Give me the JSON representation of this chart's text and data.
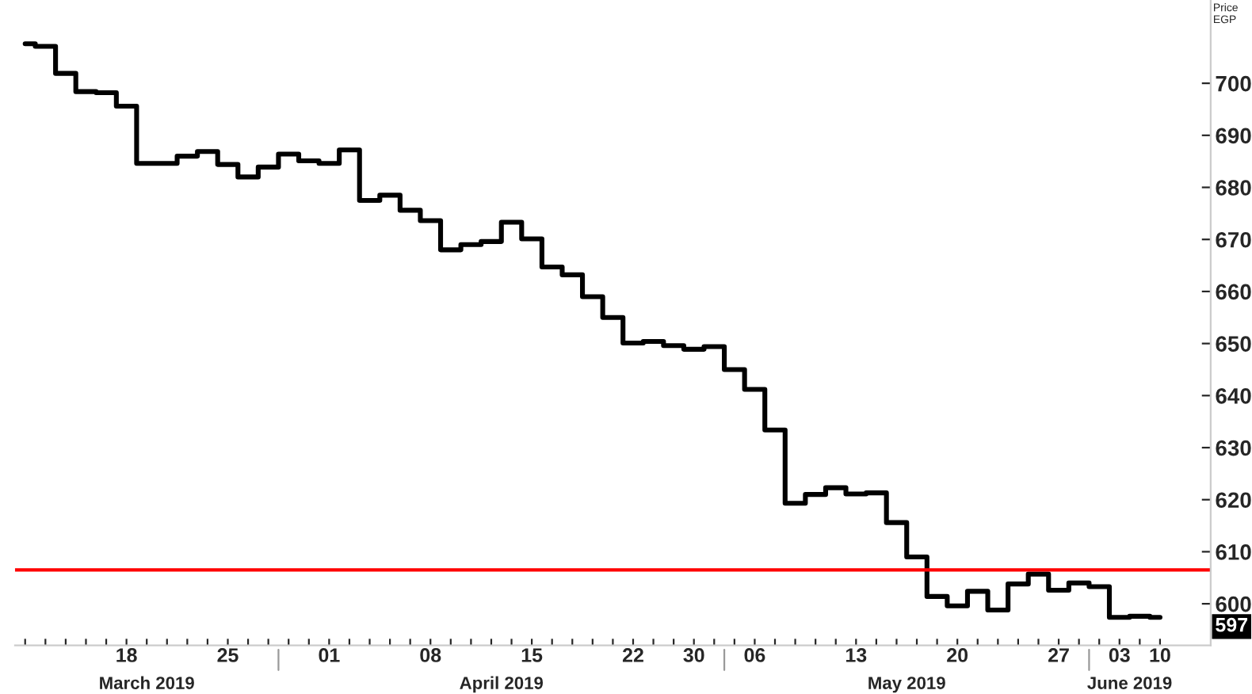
{
  "chart_data": {
    "type": "step",
    "ylabel": "Price\nEGP",
    "categories": [
      null,
      null,
      null,
      null,
      null,
      "18",
      null,
      null,
      null,
      null,
      "25",
      null,
      null,
      null,
      null,
      "01",
      null,
      null,
      null,
      null,
      "08",
      null,
      null,
      null,
      null,
      "15",
      null,
      null,
      null,
      null,
      "22",
      null,
      null,
      "30",
      null,
      null,
      "06",
      null,
      null,
      null,
      null,
      "13",
      null,
      null,
      null,
      null,
      "20",
      null,
      null,
      null,
      null,
      "27",
      null,
      null,
      "03",
      null,
      "10"
    ],
    "series": [
      {
        "color": "#000000",
        "values": [
          707.6,
          707.1,
          701.9,
          698.4,
          698.2,
          695.6,
          684.6,
          684.6,
          686,
          686.9,
          684.4,
          682,
          683.9,
          686.4,
          685.1,
          684.6,
          687.2,
          677.5,
          678.5,
          675.6,
          673.6,
          668,
          669,
          669.6,
          673.3,
          670.1,
          664.7,
          663.2,
          659,
          655,
          650.1,
          650.4,
          649.6,
          648.9,
          649.4,
          645,
          641.2,
          633.4,
          619.3,
          621,
          622.3,
          621.1,
          621.3,
          615.6,
          609,
          601.4,
          599.6,
          602.4,
          598.8,
          603.8,
          605.7,
          602.6,
          604,
          603.3,
          597.4,
          597.6,
          597.4
        ]
      }
    ],
    "ylim": [
      592,
      716
    ],
    "yticks": [
      600,
      610,
      620,
      630,
      640,
      650,
      660,
      670,
      680,
      690,
      700
    ],
    "ref_lines": [
      {
        "axis": "y",
        "value": 606.5,
        "color": "#ff0000"
      }
    ],
    "annotations": [
      "March 2019",
      "April 2019",
      "May 2019",
      "June 2019",
      {
        "text": "597",
        "x": "10",
        "y": 597.4
      }
    ],
    "grid": false,
    "marker": "none",
    "line_style": "solid"
  }
}
